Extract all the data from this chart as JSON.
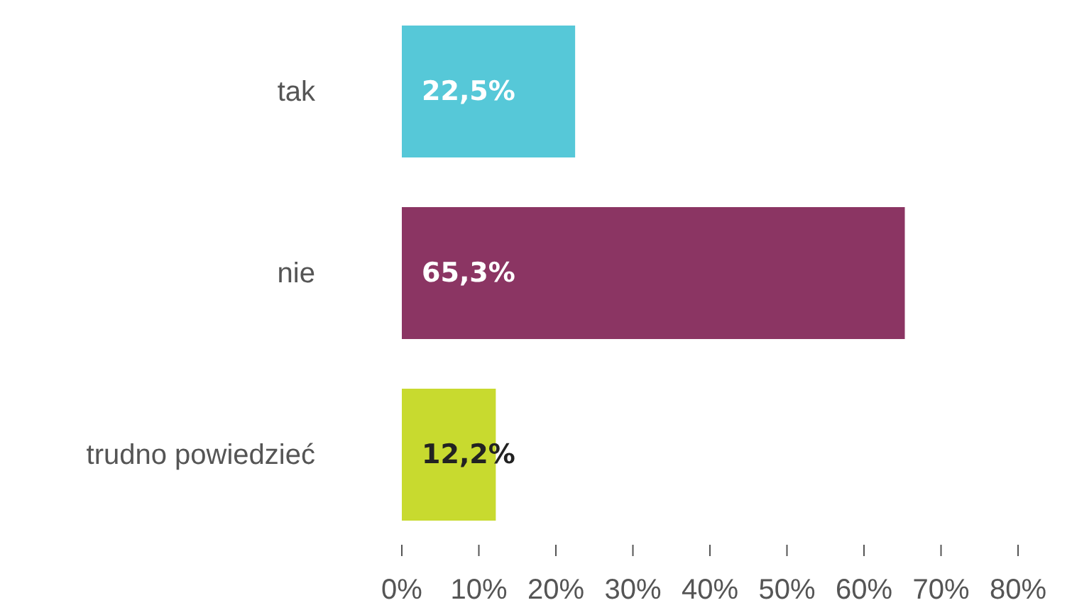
{
  "chart_data": {
    "type": "bar",
    "orientation": "horizontal",
    "categories": [
      "tak",
      "nie",
      "trudno powiedzieć"
    ],
    "values": [
      22.5,
      65.3,
      12.2
    ],
    "colors": [
      "#56c8d8",
      "#8b3563",
      "#c8da2f"
    ],
    "value_labels": [
      "22,5%",
      "65,3%",
      "12,2%"
    ],
    "xlim": [
      0,
      80
    ],
    "xticks": [
      {
        "value": 0,
        "label": "0%"
      },
      {
        "value": 10,
        "label": "10%"
      },
      {
        "value": 20,
        "label": "20%"
      },
      {
        "value": 30,
        "label": "30%"
      },
      {
        "value": 40,
        "label": "40%"
      },
      {
        "value": 50,
        "label": "50%"
      },
      {
        "value": 60,
        "label": "60%"
      },
      {
        "value": 70,
        "label": "70%"
      },
      {
        "value": 80,
        "label": "80%"
      }
    ],
    "grid": false,
    "legend": false
  }
}
